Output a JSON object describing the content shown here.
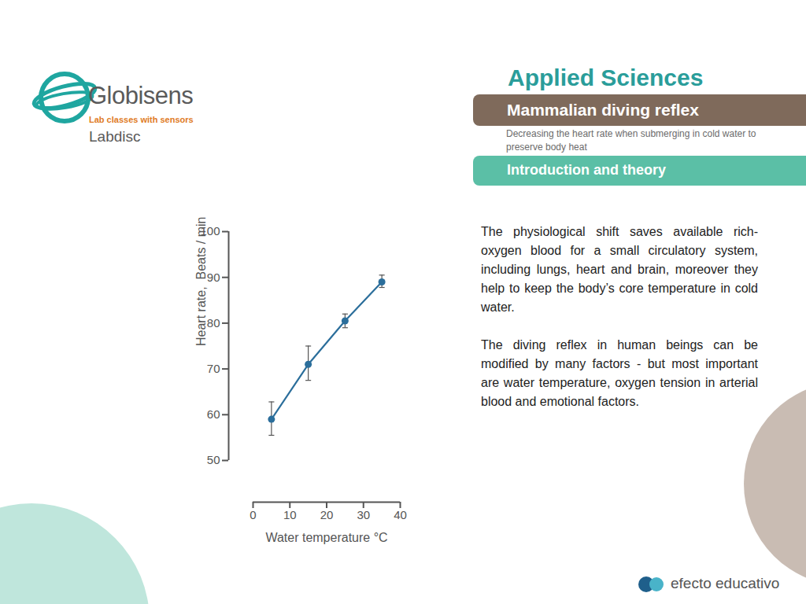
{
  "chart_data": {
    "type": "line",
    "xlabel": "Water temperature °C",
    "ylabel": "Heart rate,  Beats / min",
    "x": [
      5,
      15,
      25,
      35
    ],
    "values": [
      59,
      71,
      80.5,
      89
    ],
    "error_lower": [
      55.5,
      67.5,
      79,
      87.8
    ],
    "error_upper": [
      62.8,
      75,
      82,
      90.5
    ],
    "color": "#2b6e9b",
    "marker": "circle",
    "xlim": [
      0,
      40
    ],
    "xticks": [
      0,
      10,
      20,
      30,
      40
    ],
    "ylim": [
      50,
      100
    ],
    "yticks": [
      50,
      60,
      70,
      80,
      90,
      100
    ],
    "grid": false
  },
  "page": {
    "logo": {
      "name": "Globisens",
      "tagline": "Lab classes with sensors",
      "product": "Labdisc"
    },
    "section": "Applied Sciences",
    "title": "Mammalian diving reflex",
    "subtitle": "Decreasing the heart rate when submerging in cold water to preserve body heat",
    "heading": "Introduction and theory",
    "paragraphs": [
      "The physiological shift saves available  rich-oxygen blood for a small circulatory system, including lungs, heart and brain, moreover they help to keep the body’s core temperature in cold water.",
      "The diving reflex in human beings can be modified by many factors - but most important are water temperature, oxygen tension in arterial blood and emotional factors."
    ],
    "footer": "efecto educativo"
  }
}
